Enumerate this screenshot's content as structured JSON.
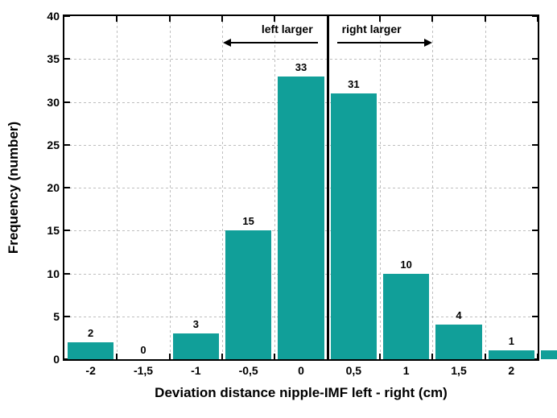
{
  "chart": {
    "type": "histogram",
    "background_color": "#ffffff",
    "bar_color": "#119f99",
    "border_color": "#000000",
    "grid_color": "#888888",
    "xlabel": "Deviation distance nipple-IMF left - right (cm)",
    "ylabel": "Frequency (number)",
    "label_fontsize": 17,
    "tick_fontsize": 14,
    "barlabel_fontsize": 13,
    "ylim": [
      0,
      40
    ],
    "ytick_step": 5,
    "xlim": [
      -2.25,
      2.25
    ],
    "x_ticks": [
      "-2",
      "-1,5",
      "-1",
      "-0,5",
      "0",
      "0,5",
      "1",
      "1,5",
      "2"
    ],
    "bin_centers": [
      -2.0,
      -1.5,
      -1.0,
      -0.5,
      0.0,
      0.5,
      1.0,
      1.5,
      2.0,
      2.5
    ],
    "values": [
      2,
      0,
      3,
      15,
      33,
      31,
      10,
      4,
      1,
      1
    ],
    "bar_half_width": 0.22,
    "center_ref": 0.25,
    "annotations": {
      "left": "left larger",
      "right": "right larger"
    }
  }
}
